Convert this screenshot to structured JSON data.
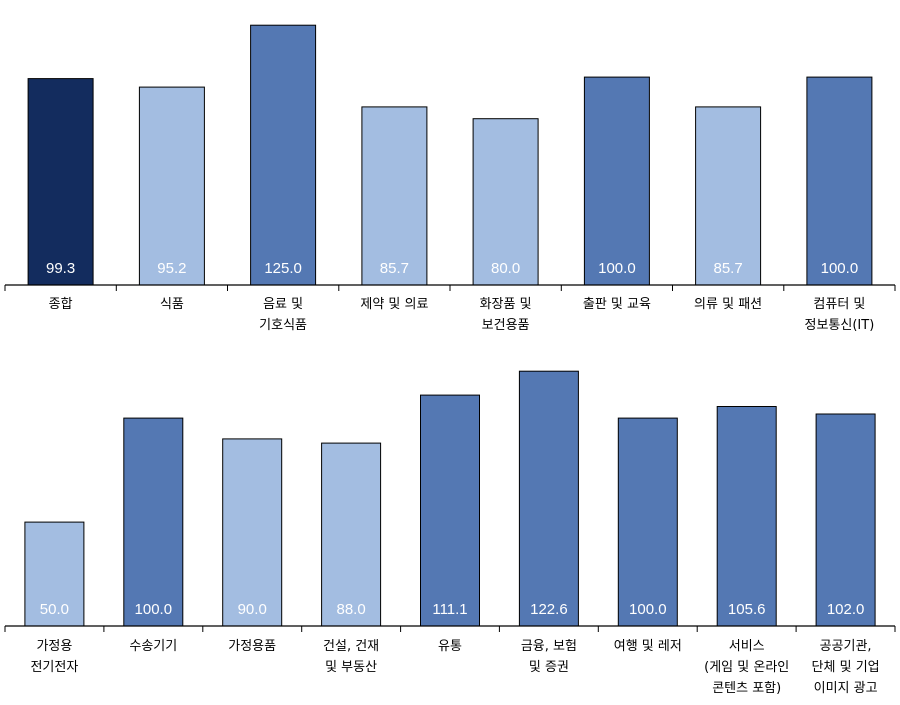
{
  "colors": {
    "dark": "#132c5e",
    "mid": "#5478b3",
    "light": "#a3bde1",
    "axis": "#000000"
  },
  "chart_data": [
    {
      "type": "bar",
      "categories": [
        [
          "종합"
        ],
        [
          "식품"
        ],
        [
          "음료 및",
          "기호식품"
        ],
        [
          "제약 및 의료"
        ],
        [
          "화장품 및",
          "보건용품"
        ],
        [
          "출판 및 교육"
        ],
        [
          "의류 및 패션"
        ],
        [
          "컴퓨터 및",
          "정보통신(IT)"
        ]
      ],
      "values": [
        99.3,
        95.2,
        125.0,
        85.7,
        80.0,
        100.0,
        85.7,
        100.0
      ],
      "value_labels": [
        "99.3",
        "95.2",
        "125.0",
        "85.7",
        "80.0",
        "100.0",
        "85.7",
        "100.0"
      ],
      "bar_colors": [
        "dark",
        "light",
        "mid",
        "light",
        "light",
        "mid",
        "light",
        "mid"
      ],
      "title": "",
      "xlabel": "",
      "ylabel": "",
      "ylim": [
        0,
        140
      ],
      "grid": false,
      "legend": "none"
    },
    {
      "type": "bar",
      "categories": [
        [
          "가정용",
          "전기전자"
        ],
        [
          "수송기기"
        ],
        [
          "가정용품"
        ],
        [
          "건설, 건재",
          "및 부동산"
        ],
        [
          "유통"
        ],
        [
          "금융, 보험",
          "및 증권"
        ],
        [
          "여행 및 레저"
        ],
        [
          "서비스",
          "(게임 및 온라인",
          "콘텐츠 포함)"
        ],
        [
          "공공기관,",
          "단체 및 기업",
          "이미지 광고"
        ]
      ],
      "values": [
        50.0,
        100.0,
        90.0,
        88.0,
        111.1,
        122.6,
        100.0,
        105.6,
        102.0
      ],
      "value_labels": [
        "50.0",
        "100.0",
        "90.0",
        "88.0",
        "111.1",
        "122.6",
        "100.0",
        "105.6",
        "102.0"
      ],
      "bar_colors": [
        "light",
        "mid",
        "light",
        "light",
        "mid",
        "mid",
        "mid",
        "mid",
        "mid"
      ],
      "title": "",
      "xlabel": "",
      "ylabel": "",
      "ylim": [
        0,
        140
      ],
      "grid": false,
      "legend": "none"
    }
  ]
}
